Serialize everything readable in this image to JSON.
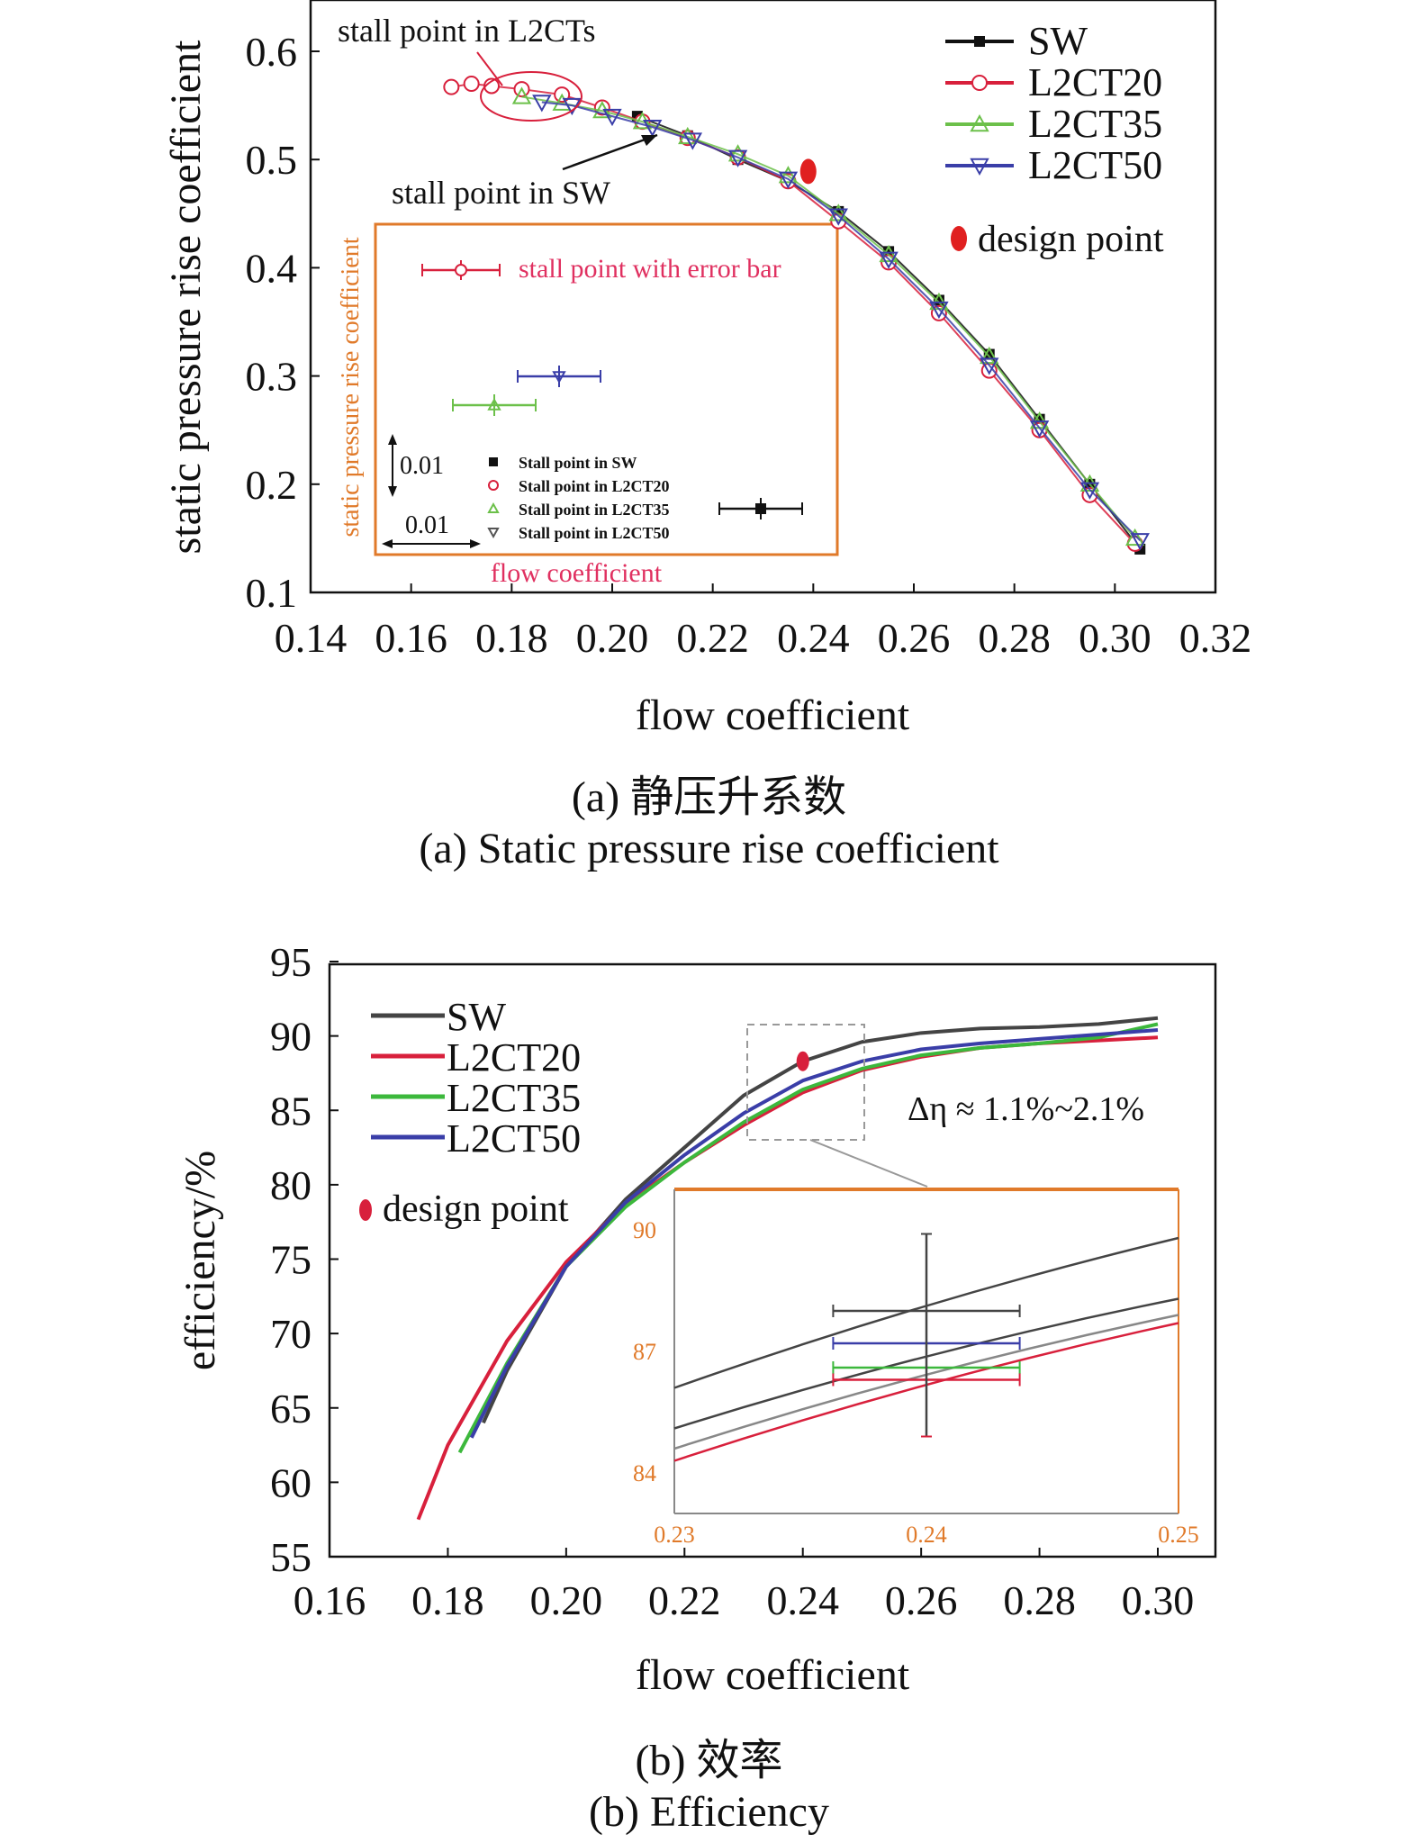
{
  "chart_data": [
    {
      "type": "scatter",
      "xlabel": "flow coefficient",
      "ylabel": "static pressure rise coefficient",
      "xlim": [
        0.14,
        0.32
      ],
      "ylim": [
        0.1,
        0.65
      ],
      "xticks": [
        "0.14",
        "0.16",
        "0.18",
        "0.20",
        "0.22",
        "0.24",
        "0.26",
        "0.28",
        "0.30",
        "0.32"
      ],
      "yticks": [
        "0.1",
        "0.2",
        "0.3",
        "0.4",
        "0.5",
        "0.6"
      ],
      "colors": {
        "SW": "#111111",
        "L2CT20": "#d8203c",
        "L2CT35": "#6cc04a",
        "L2CT50": "#3a3ea8",
        "design": "#e02020",
        "inset_frame": "#e07a2a"
      },
      "legend_placement": "top-right",
      "series": [
        {
          "name": "SW",
          "marker": "square",
          "x": [
            0.205,
            0.215,
            0.225,
            0.235,
            0.245,
            0.255,
            0.265,
            0.275,
            0.285,
            0.295,
            0.305
          ],
          "y": [
            0.54,
            0.522,
            0.5,
            0.48,
            0.452,
            0.415,
            0.37,
            0.32,
            0.26,
            0.2,
            0.14
          ]
        },
        {
          "name": "L2CT20",
          "marker": "circle",
          "x": [
            0.168,
            0.172,
            0.176,
            0.182,
            0.19,
            0.198,
            0.206,
            0.215,
            0.225,
            0.235,
            0.245,
            0.255,
            0.265,
            0.275,
            0.285,
            0.295,
            0.304
          ],
          "y": [
            0.567,
            0.57,
            0.568,
            0.565,
            0.56,
            0.548,
            0.535,
            0.52,
            0.502,
            0.48,
            0.443,
            0.405,
            0.358,
            0.305,
            0.25,
            0.19,
            0.145
          ]
        },
        {
          "name": "L2CT35",
          "marker": "triangle-up",
          "x": [
            0.182,
            0.19,
            0.198,
            0.206,
            0.215,
            0.225,
            0.235,
            0.245,
            0.255,
            0.265,
            0.275,
            0.285,
            0.295,
            0.304
          ],
          "y": [
            0.558,
            0.552,
            0.545,
            0.535,
            0.521,
            0.505,
            0.485,
            0.45,
            0.412,
            0.368,
            0.318,
            0.258,
            0.2,
            0.15
          ]
        },
        {
          "name": "L2CT50",
          "marker": "triangle-down",
          "x": [
            0.186,
            0.192,
            0.2,
            0.208,
            0.216,
            0.225,
            0.235,
            0.245,
            0.255,
            0.265,
            0.275,
            0.285,
            0.295,
            0.305
          ],
          "y": [
            0.553,
            0.55,
            0.54,
            0.53,
            0.518,
            0.502,
            0.482,
            0.448,
            0.408,
            0.362,
            0.31,
            0.252,
            0.195,
            0.148
          ]
        }
      ],
      "design_point": {
        "x": 0.239,
        "y": 0.489,
        "label": "design point"
      },
      "annotations": [
        "stall point in L2CTs",
        "stall point in SW"
      ],
      "inset": {
        "ylabel": "static pressure rise coefficient",
        "xlabel": "flow coefficient",
        "title": "stall point with error bar",
        "scale_vertical": "0.01",
        "scale_horizontal": "0.01",
        "legend": [
          "Stall point in SW",
          "Stall point in L2CT20",
          "Stall point in L2CT35",
          "Stall point in L2CT50"
        ]
      }
    },
    {
      "type": "line",
      "xlabel": "flow coefficient",
      "ylabel": "efficiency/%",
      "xlim": [
        0.16,
        0.3
      ],
      "ylim": [
        55,
        95
      ],
      "xticks": [
        "0.16",
        "0.18",
        "0.20",
        "0.22",
        "0.24",
        "0.26",
        "0.28",
        "0.30"
      ],
      "yticks": [
        "55",
        "60",
        "65",
        "70",
        "75",
        "80",
        "85",
        "90",
        "95"
      ],
      "legend_placement": "top-left",
      "series": [
        {
          "name": "SW",
          "color": "#444444",
          "x": [
            0.186,
            0.19,
            0.2,
            0.21,
            0.22,
            0.23,
            0.24,
            0.25,
            0.26,
            0.27,
            0.28,
            0.29,
            0.3
          ],
          "y": [
            64.0,
            67.5,
            74.5,
            79.0,
            82.5,
            86.0,
            88.3,
            89.6,
            90.2,
            90.5,
            90.6,
            90.8,
            91.2
          ]
        },
        {
          "name": "L2CT20",
          "color": "#d8203c",
          "x": [
            0.175,
            0.18,
            0.19,
            0.2,
            0.21,
            0.22,
            0.23,
            0.24,
            0.25,
            0.26,
            0.27,
            0.28,
            0.29,
            0.3
          ],
          "y": [
            57.5,
            62.5,
            69.5,
            74.8,
            78.7,
            81.5,
            84.0,
            86.2,
            87.7,
            88.6,
            89.2,
            89.5,
            89.7,
            89.9
          ]
        },
        {
          "name": "L2CT35",
          "color": "#3cb83c",
          "x": [
            0.182,
            0.19,
            0.2,
            0.21,
            0.22,
            0.23,
            0.24,
            0.25,
            0.26,
            0.27,
            0.28,
            0.29,
            0.3
          ],
          "y": [
            62.0,
            68.0,
            74.5,
            78.5,
            81.5,
            84.2,
            86.4,
            87.8,
            88.7,
            89.2,
            89.5,
            89.9,
            90.8
          ]
        },
        {
          "name": "L2CT50",
          "color": "#3a3ea8",
          "x": [
            0.184,
            0.19,
            0.2,
            0.21,
            0.22,
            0.23,
            0.24,
            0.25,
            0.26,
            0.27,
            0.28,
            0.29,
            0.3
          ],
          "y": [
            63.0,
            67.8,
            74.5,
            78.8,
            82.0,
            84.8,
            87.0,
            88.3,
            89.1,
            89.5,
            89.8,
            90.1,
            90.4
          ]
        }
      ],
      "design_point": {
        "x": 0.24,
        "y": 88.3,
        "label": "design point"
      },
      "annotation": "Δη ≈ 1.1%~2.1%",
      "inset": {
        "xticks": [
          "0.23",
          "0.24",
          "0.25"
        ],
        "yticks": [
          "84",
          "87",
          "90"
        ],
        "xlim": [
          0.23,
          0.25
        ],
        "ylim": [
          83,
          91
        ]
      }
    }
  ],
  "captions": {
    "a_cn": "(a) 静压升系数",
    "a_en": "(a) Static pressure rise coefficient",
    "b_cn": "(b) 效率",
    "b_en": "(b) Efficiency"
  }
}
